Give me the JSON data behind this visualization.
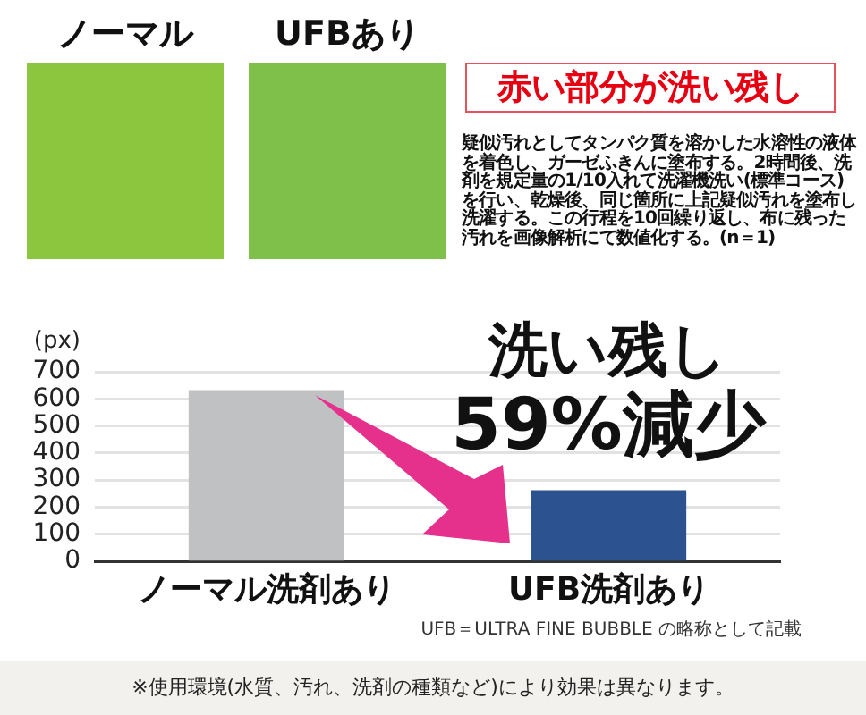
{
  "chart_data": {
    "type": "bar",
    "categories": [
      "ノーマル洗剤あり",
      "UFB洗剤あり"
    ],
    "values": [
      630,
      260
    ],
    "colors": [
      "#c0c1c3",
      "#2c5390"
    ],
    "ylabel": "(px)",
    "ylim": [
      0,
      700
    ],
    "yticks": [
      0,
      100,
      200,
      300,
      400,
      500,
      600,
      700
    ],
    "grid": "y",
    "annotations": [
      "ノーマル",
      "UFBあり",
      "赤い部分が洗い残し",
      "疑似汚れとしてタンパク質を溶かした水溶性の液体を着色し、ガーゼふきんに塗布する。2時間後、洗剤を規定量の1/10入れて洗濯機洗い(標準コース)を行い、乾燥後、同じ箇所に上記疑似汚れを塗布し洗濯する。この行程を10回繰り返し、布に残った汚れを画像解析にて数値化する。(n＝1)",
      "洗い残し",
      "59%減少",
      "UFB＝ULTRA FINE BUBBLE の略称として記載",
      "※使用環境(水質、汚れ、洗剤の種類など)により効果は異なります。"
    ]
  }
}
